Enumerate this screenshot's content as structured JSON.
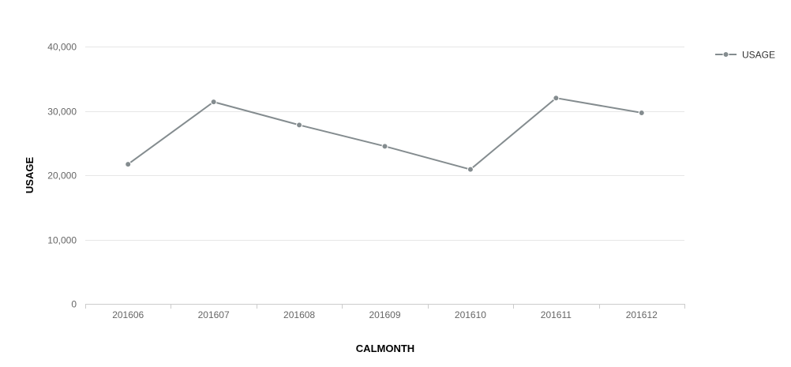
{
  "chart_data": {
    "type": "line",
    "categories": [
      "201606",
      "201607",
      "201608",
      "201609",
      "201610",
      "201611",
      "201612"
    ],
    "series": [
      {
        "name": "USAGE",
        "values": [
          21700,
          31400,
          27800,
          24500,
          20900,
          32000,
          29700
        ],
        "color": "#848c8f"
      }
    ],
    "xlabel": "CALMONTH",
    "ylabel": "USAGE",
    "ylim": [
      0,
      40000
    ],
    "yticks": [
      {
        "value": 0,
        "label": "0"
      },
      {
        "value": 10000,
        "label": "10,000"
      },
      {
        "value": 20000,
        "label": "20,000"
      },
      {
        "value": 30000,
        "label": "30,000"
      },
      {
        "value": 40000,
        "label": "40,000"
      }
    ],
    "grid": true,
    "legend": {
      "position": "top-right",
      "entries": [
        "USAGE"
      ]
    },
    "colors": {
      "gridline": "#e6e6e6",
      "axis": "#cccccc",
      "tick_text": "#666666",
      "title_text": "#000000"
    }
  }
}
